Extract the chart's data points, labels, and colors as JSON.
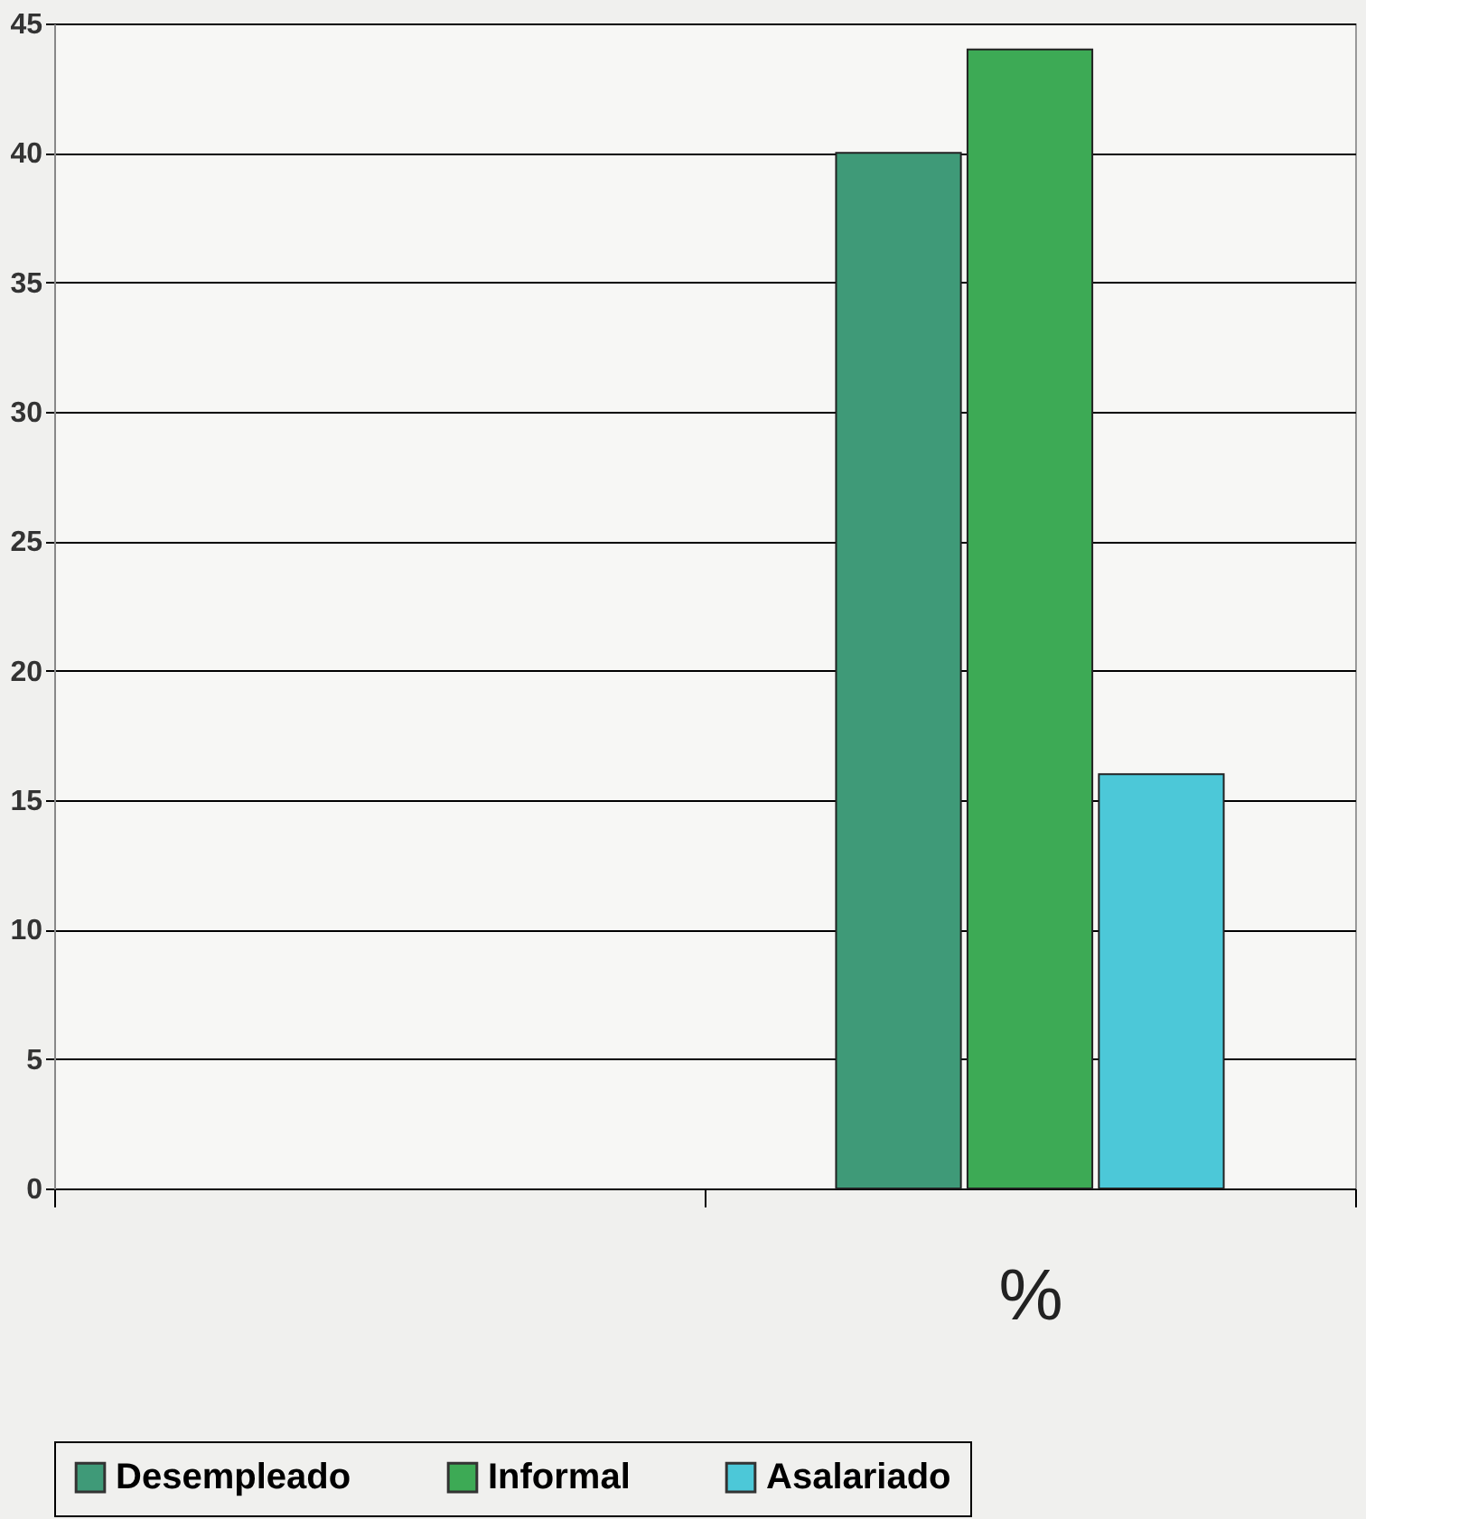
{
  "chart_data": {
    "type": "bar",
    "categories": [
      null,
      "%"
    ],
    "series": [
      {
        "name": "Desempleado",
        "color": "#3f9a78",
        "values": [
          null,
          40
        ]
      },
      {
        "name": "Informal",
        "color": "#3daa55",
        "values": [
          null,
          44
        ]
      },
      {
        "name": "Asalariado",
        "color": "#4cc8d8",
        "values": [
          null,
          16
        ]
      }
    ],
    "ylim": [
      0,
      45
    ],
    "yticks": [
      0,
      5,
      10,
      15,
      20,
      25,
      30,
      35,
      40,
      45
    ],
    "grid": "y",
    "legend": "bottom"
  }
}
